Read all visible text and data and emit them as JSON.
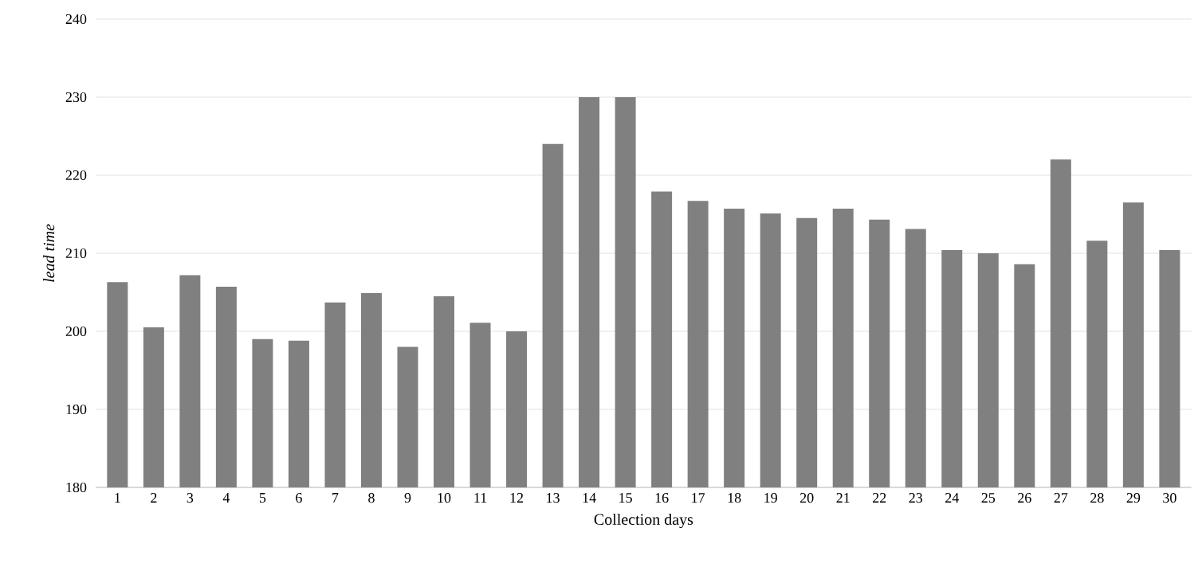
{
  "chart_data": {
    "type": "bar",
    "xlabel": "Collection days",
    "ylabel": "*lead time*",
    "categories": [
      "1",
      "2",
      "3",
      "4",
      "5",
      "6",
      "7",
      "8",
      "9",
      "10",
      "11",
      "12",
      "13",
      "14",
      "15",
      "16",
      "17",
      "18",
      "19",
      "20",
      "21",
      "22",
      "23",
      "24",
      "25",
      "26",
      "27",
      "28",
      "29",
      "30"
    ],
    "values": [
      206.3,
      200.5,
      207.2,
      205.7,
      199,
      198.8,
      203.7,
      204.9,
      198,
      204.5,
      201.1,
      200,
      224,
      230,
      230,
      217.9,
      216.7,
      215.7,
      215.1,
      214.5,
      215.7,
      214.3,
      213.1,
      210.4,
      210,
      208.6,
      222,
      211.6,
      216.5,
      210.4
    ],
    "color": "#808080",
    "ylim": [
      180,
      240
    ],
    "yticks": [
      180,
      190,
      200,
      210,
      220,
      230,
      240
    ],
    "grid": "y"
  }
}
